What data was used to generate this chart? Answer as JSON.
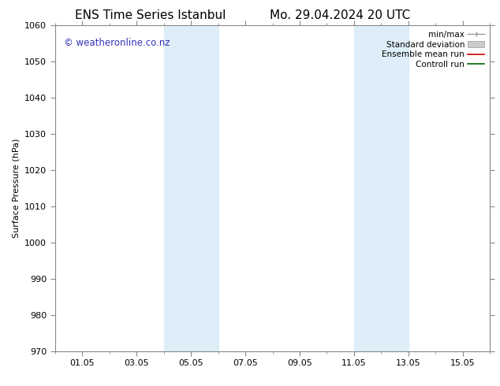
{
  "title_left": "ENS Time Series Istanbul",
  "title_right": "Mo. 29.04.2024 20 UTC",
  "ylabel": "Surface Pressure (hPa)",
  "ylim": [
    970,
    1060
  ],
  "yticks": [
    970,
    980,
    990,
    1000,
    1010,
    1020,
    1030,
    1040,
    1050,
    1060
  ],
  "xlim": [
    0,
    16
  ],
  "x_tick_labels": [
    "01.05",
    "03.05",
    "05.05",
    "07.05",
    "09.05",
    "11.05",
    "13.05",
    "15.05"
  ],
  "x_tick_positions": [
    1,
    3,
    5,
    7,
    9,
    11,
    13,
    15
  ],
  "shaded_bands": [
    {
      "x_start": 4.0,
      "x_end": 6.0,
      "color": "#ddeef8"
    },
    {
      "x_start": 11.0,
      "x_end": 13.0,
      "color": "#ddeef8"
    }
  ],
  "watermark_text": "© weatheronline.co.nz",
  "watermark_color": "#3333bb",
  "watermark_fontsize": 8.5,
  "legend_entries": [
    {
      "label": "min/max",
      "color": "#999999",
      "style": "minmax"
    },
    {
      "label": "Standard deviation",
      "color": "#cccccc",
      "style": "box"
    },
    {
      "label": "Ensemble mean run",
      "color": "#cc0000",
      "style": "line"
    },
    {
      "label": "Controll run",
      "color": "#006600",
      "style": "line"
    }
  ],
  "background_color": "#ffffff",
  "title_fontsize": 11,
  "axis_label_fontsize": 8,
  "tick_fontsize": 8,
  "legend_fontsize": 7.5
}
